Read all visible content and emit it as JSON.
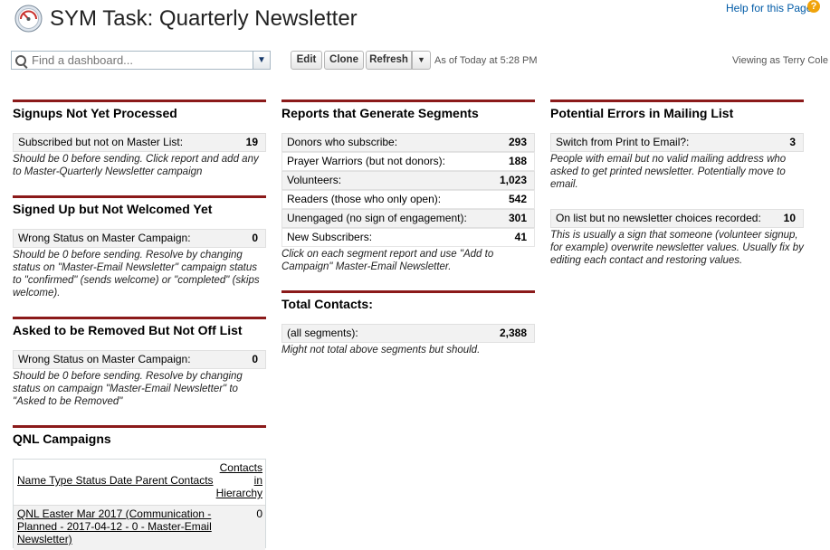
{
  "header": {
    "title": "SYM Task: Quarterly Newsletter",
    "help_link": "Help for this Page",
    "help_icon": "?"
  },
  "toolbar": {
    "find_placeholder": "Find a dashboard...",
    "edit_label": "Edit",
    "clone_label": "Clone",
    "refresh_label": "Refresh",
    "as_of": "As of Today at 5:28 PM",
    "viewing_as": "Viewing as Terry Cole"
  },
  "col1": {
    "c1": {
      "title": "Signups Not Yet Processed",
      "row_label": "Subscribed but not on Master List:",
      "row_value": "19",
      "footer": "Should be 0 before sending. Click report and add any to Master-Quarterly Newsletter campaign"
    },
    "c2": {
      "title": "Signed Up but Not Welcomed Yet",
      "row_label": "Wrong Status on Master Campaign:",
      "row_value": "0",
      "footer": "Should be 0 before sending. Resolve by changing status on \"Master-Email Newsletter\" campaign status to \"confirmed\" (sends welcome) or \"completed\" (skips welcome)."
    },
    "c3": {
      "title": "Asked to be Removed But Not Off List",
      "row_label": "Wrong Status on Master Campaign:",
      "row_value": "0",
      "footer": "Should be 0 before sending. Resolve by changing status on campaign \"Master-Email Newsletter\" to \"Asked to be Removed\""
    },
    "c4": {
      "title": "QNL Campaigns",
      "header_col1": "Name Type Status Date Parent Contacts",
      "header_col2": "Contacts in Hierarchy",
      "row_col1": "QNL Easter Mar 2017 (Communication - Planned - 2017-04-12 - 0 - Master-Email Newsletter)",
      "row_col2": "0"
    }
  },
  "col2": {
    "c1": {
      "title": "Reports that Generate Segments",
      "rows": [
        {
          "label": "Donors who subscribe:",
          "value": "293"
        },
        {
          "label": "Prayer Warriors (but not donors):",
          "value": "188"
        },
        {
          "label": "Volunteers:",
          "value": "1,023"
        },
        {
          "label": "Readers (those who only open):",
          "value": "542"
        },
        {
          "label": "Unengaged (no sign of engagement):",
          "value": "301"
        },
        {
          "label": "New Subscribers:",
          "value": "41"
        }
      ],
      "footer": "Click on each segment report and use \"Add to Campaign\" Master-Email Newsletter."
    },
    "c2": {
      "title": "Total Contacts:",
      "row_label": "(all segments):",
      "row_value": "2,388",
      "footer": "Might not total above segments but should."
    }
  },
  "col3": {
    "c1": {
      "title": "Potential Errors in Mailing List",
      "row1_label": "Switch from Print to Email?:",
      "row1_value": "3",
      "row1_footer": "People with email but no valid mailing address who asked to get printed newsletter. Potentially move to email.",
      "row2_label": "On list but no newsletter choices recorded:",
      "row2_value": "10",
      "row2_footer": "This is usually a sign that someone (volunteer signup, for example) overwrite newsletter values. Usually fix by editing each contact and restoring values."
    }
  },
  "icons": {
    "logo": "dashboard-gauge-icon",
    "search": "search-icon",
    "dropdown": "chevron-down-icon"
  },
  "colors": {
    "accent_rule": "#8b1a1a",
    "link": "#015ba7",
    "help_icon": "#f0a30a"
  }
}
